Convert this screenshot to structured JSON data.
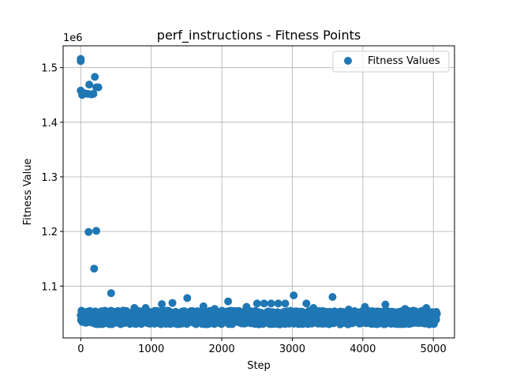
{
  "chart_data": {
    "type": "scatter",
    "title": "perf_instructions - Fitness Points",
    "xlabel": "Step",
    "ylabel": "Fitness Value",
    "y_scale_label": "1e6",
    "xlim": [
      -250,
      5300
    ],
    "ylim": [
      1005000,
      1540000
    ],
    "x_ticks": [
      0,
      1000,
      2000,
      3000,
      4000,
      5000
    ],
    "y_ticks": [
      1100000,
      1200000,
      1300000,
      1400000,
      1500000
    ],
    "x_tick_labels": [
      "0",
      "1000",
      "2000",
      "3000",
      "4000",
      "5000"
    ],
    "y_tick_labels": [
      "1.1",
      "1.2",
      "1.3",
      "1.4",
      "1.5"
    ],
    "grid": true,
    "legend_position": "top-right",
    "color": "#1f77b4",
    "series": [
      {
        "name": "Fitness Values",
        "x_range": [
          0,
          5050
        ],
        "dense_band": [
          1030000,
          1055000
        ],
        "points": [
          [
            0,
            1516000
          ],
          [
            0,
            1512000
          ],
          [
            0,
            1458000
          ],
          [
            20,
            1450000
          ],
          [
            60,
            1453000
          ],
          [
            100,
            1452000
          ],
          [
            120,
            1469000
          ],
          [
            150,
            1451000
          ],
          [
            180,
            1452000
          ],
          [
            200,
            1483000
          ],
          [
            220,
            1464000
          ],
          [
            250,
            1464000
          ],
          [
            110,
            1199000
          ],
          [
            220,
            1201000
          ],
          [
            190,
            1132000
          ],
          [
            430,
            1087000
          ],
          [
            1510,
            1078000
          ],
          [
            3020,
            1083000
          ],
          [
            3570,
            1080000
          ],
          [
            2090,
            1072000
          ],
          [
            1300,
            1069000
          ],
          [
            1150,
            1067000
          ],
          [
            2500,
            1068000
          ],
          [
            2600,
            1068000
          ],
          [
            2700,
            1068000
          ],
          [
            2800,
            1068000
          ],
          [
            2900,
            1068000
          ],
          [
            3200,
            1068000
          ],
          [
            4320,
            1066000
          ],
          [
            4030,
            1062000
          ],
          [
            760,
            1060000
          ],
          [
            920,
            1060000
          ],
          [
            1740,
            1063000
          ],
          [
            2350,
            1062000
          ],
          [
            3300,
            1060000
          ],
          [
            4900,
            1060000
          ],
          [
            600,
            1055000
          ],
          [
            1900,
            1058000
          ],
          [
            3800,
            1057000
          ],
          [
            4600,
            1058000
          ]
        ]
      }
    ]
  }
}
